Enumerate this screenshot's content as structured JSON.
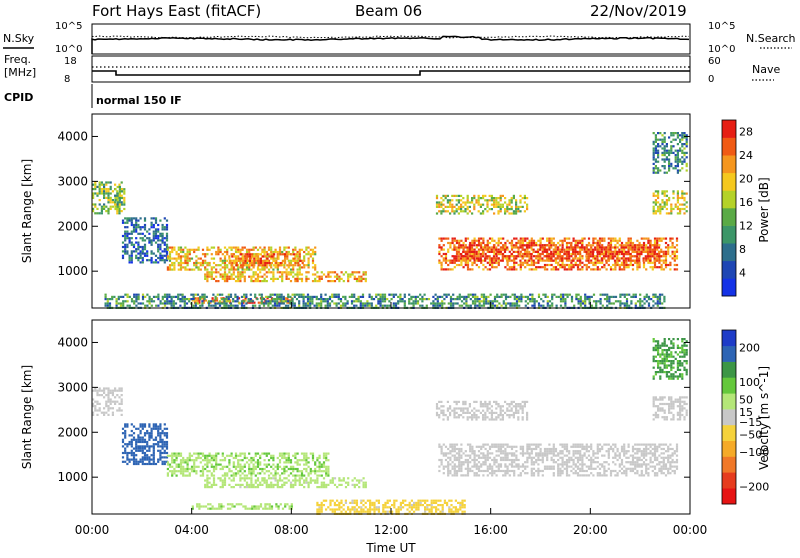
{
  "header": {
    "title": "Fort Hays East (fitACF)",
    "beam": "Beam 06",
    "date": "22/Nov/2019"
  },
  "top_panels": {
    "nsky_label": "N.Sky",
    "nsky_ticks": [
      "10^5",
      "10^0"
    ],
    "nsearch_label": "N.Search",
    "nsearch_ticks": [
      "10^5",
      "10^0"
    ],
    "freq_label_1": "Freq.",
    "freq_label_2": "[MHz]",
    "freq_ticks": [
      "18",
      "8"
    ],
    "nave_label": "Nave",
    "nave_ticks": [
      "60",
      "0"
    ],
    "cpid_label": "CPID",
    "cpid_value": "normal 150 IF"
  },
  "colors": {
    "power_scale": [
      "#1432e6",
      "#1e46b4",
      "#2d6e8c",
      "#3c9668",
      "#5aaa46",
      "#b4d228",
      "#f5c81e",
      "#f5961e",
      "#f05a14",
      "#e61e14"
    ],
    "velocity_scale": [
      "#1e3cc8",
      "#2d64b4",
      "#3c9646",
      "#64c83c",
      "#b4e678",
      "#c8c8c8",
      "#f5d23c",
      "#f5aa28",
      "#f07828",
      "#e63c1e",
      "#e61414"
    ]
  },
  "chart_data": [
    {
      "type": "heatmap",
      "name": "power",
      "ylabel": "Slant Range [km]",
      "xlabel": "",
      "xlim": [
        "00:00",
        "24:00"
      ],
      "ylim": [
        180,
        4500
      ],
      "x_ticks": [
        "00:00",
        "04:00",
        "08:00",
        "12:00",
        "16:00",
        "20:00",
        "00:00"
      ],
      "y_ticks": [
        1000,
        2000,
        3000,
        4000
      ],
      "colorbar": {
        "label": "Power [dB]",
        "ticks": [
          4,
          8,
          12,
          16,
          20,
          24,
          28
        ],
        "range": [
          0,
          30
        ]
      },
      "regions": [
        {
          "t_start": 0.0,
          "t_end": 1.2,
          "r_low": 2300,
          "r_high": 3000,
          "value": 14
        },
        {
          "t_start": 0.9,
          "t_end": 1.3,
          "r_low": 2400,
          "r_high": 2900,
          "value": 14
        },
        {
          "t_start": 1.2,
          "t_end": 3.0,
          "r_low": 1200,
          "r_high": 2200,
          "value": 6
        },
        {
          "t_start": 3.0,
          "t_end": 9.0,
          "r_low": 1050,
          "r_high": 1550,
          "value": 20
        },
        {
          "t_start": 5.5,
          "t_end": 8.5,
          "r_low": 1150,
          "r_high": 1400,
          "value": 24
        },
        {
          "t_start": 4.5,
          "t_end": 11.0,
          "r_low": 800,
          "r_high": 1000,
          "value": 21
        },
        {
          "t_start": 4.0,
          "t_end": 8.0,
          "r_low": 300,
          "r_high": 420,
          "value": 25
        },
        {
          "t_start": 0.5,
          "t_end": 23.0,
          "r_low": 200,
          "r_high": 500,
          "value": 10
        },
        {
          "t_start": 13.9,
          "t_end": 23.5,
          "r_low": 1050,
          "r_high": 1750,
          "value": 24
        },
        {
          "t_start": 14.5,
          "t_end": 22.8,
          "r_low": 1250,
          "r_high": 1600,
          "value": 27
        },
        {
          "t_start": 13.8,
          "t_end": 17.5,
          "r_low": 2300,
          "r_high": 2700,
          "value": 17
        },
        {
          "t_start": 22.5,
          "t_end": 23.9,
          "r_low": 2300,
          "r_high": 2800,
          "value": 18
        },
        {
          "t_start": 22.5,
          "t_end": 23.9,
          "r_low": 3200,
          "r_high": 4100,
          "value": 10
        }
      ]
    },
    {
      "type": "heatmap",
      "name": "velocity",
      "ylabel": "Slant Range [km]",
      "xlabel": "Time UT",
      "xlim": [
        "00:00",
        "24:00"
      ],
      "ylim": [
        180,
        4500
      ],
      "x_ticks": [
        "00:00",
        "04:00",
        "08:00",
        "12:00",
        "16:00",
        "20:00",
        "00:00"
      ],
      "y_ticks": [
        1000,
        2000,
        3000,
        4000
      ],
      "colorbar": {
        "label": "Velocity [m s^-1]",
        "ticks": [
          200,
          100,
          50,
          15,
          -15,
          -50,
          -100,
          -200
        ],
        "range": [
          -250,
          250
        ]
      },
      "regions": [
        {
          "t_start": 0.0,
          "t_end": 1.2,
          "r_low": 2400,
          "r_high": 3000,
          "value": 0
        },
        {
          "t_start": 1.2,
          "t_end": 3.0,
          "r_low": 1300,
          "r_high": 2200,
          "value": 180
        },
        {
          "t_start": 3.0,
          "t_end": 9.5,
          "r_low": 1050,
          "r_high": 1550,
          "value": 60
        },
        {
          "t_start": 4.5,
          "t_end": 11.0,
          "r_low": 800,
          "r_high": 1000,
          "value": 40
        },
        {
          "t_start": 4.0,
          "t_end": 8.0,
          "r_low": 300,
          "r_high": 420,
          "value": 55
        },
        {
          "t_start": 9.0,
          "t_end": 15.0,
          "r_low": 200,
          "r_high": 500,
          "value": -40
        },
        {
          "t_start": 13.9,
          "t_end": 23.5,
          "r_low": 1050,
          "r_high": 1750,
          "value": 0
        },
        {
          "t_start": 13.8,
          "t_end": 17.5,
          "r_low": 2300,
          "r_high": 2700,
          "value": 0
        },
        {
          "t_start": 22.5,
          "t_end": 23.9,
          "r_low": 2300,
          "r_high": 2800,
          "value": 0
        },
        {
          "t_start": 22.5,
          "t_end": 23.9,
          "r_low": 3200,
          "r_high": 4100,
          "value": 120
        }
      ]
    }
  ]
}
